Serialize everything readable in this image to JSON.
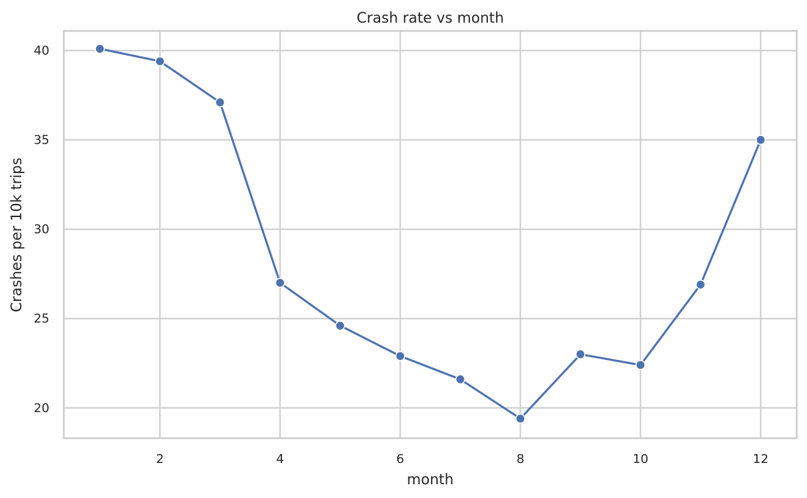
{
  "chart_data": {
    "type": "line",
    "title": "Crash rate vs month",
    "xlabel": "month",
    "ylabel": "Crashes per 10k trips",
    "x": [
      1,
      2,
      3,
      4,
      5,
      6,
      7,
      8,
      9,
      10,
      11,
      12
    ],
    "series": [
      {
        "values": [
          40.1,
          39.4,
          37.1,
          27.0,
          24.6,
          22.9,
          21.6,
          19.4,
          23.0,
          22.4,
          26.9,
          35.0
        ]
      }
    ],
    "xticks": [
      2,
      4,
      6,
      8,
      10,
      12
    ],
    "yticks": [
      20,
      25,
      30,
      35,
      40
    ],
    "xlim": [
      0.4,
      12.6
    ],
    "ylim": [
      18.3,
      41.1
    ],
    "grid": true,
    "marker": "circle",
    "colors": {
      "line": "#4c72b0",
      "marker_stroke": "#ffffff",
      "grid": "#cccccc"
    }
  }
}
